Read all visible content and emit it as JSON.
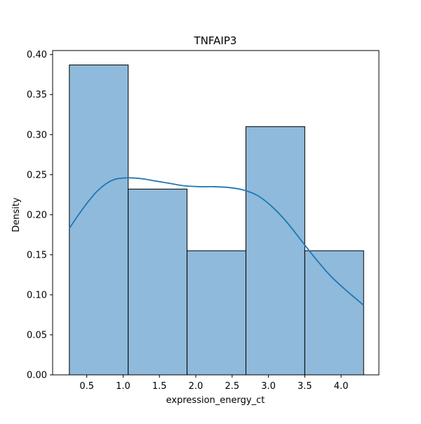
{
  "chart_data": {
    "type": "histogram",
    "title": "TNFAIP3",
    "xlabel": "expression_energy_ct",
    "ylabel": "Density",
    "xlim": [
      0.03,
      4.52
    ],
    "ylim": [
      0.0,
      0.405
    ],
    "xticks": [
      0.5,
      1.0,
      1.5,
      2.0,
      2.5,
      3.0,
      3.5,
      4.0
    ],
    "xtick_labels": [
      "0.5",
      "1.0",
      "1.5",
      "2.0",
      "2.5",
      "3.0",
      "3.5",
      "4.0"
    ],
    "yticks": [
      0.0,
      0.05,
      0.1,
      0.15,
      0.2,
      0.25,
      0.3,
      0.35,
      0.4
    ],
    "ytick_labels": [
      "0.00",
      "0.05",
      "0.10",
      "0.15",
      "0.20",
      "0.25",
      "0.30",
      "0.35",
      "0.40"
    ],
    "grid": false,
    "bins": [
      {
        "x0": 0.26,
        "x1": 1.07,
        "density": 0.387
      },
      {
        "x0": 1.07,
        "x1": 1.88,
        "density": 0.232
      },
      {
        "x0": 1.88,
        "x1": 2.69,
        "density": 0.155
      },
      {
        "x0": 2.69,
        "x1": 3.5,
        "density": 0.31
      },
      {
        "x0": 3.5,
        "x1": 4.31,
        "density": 0.155
      }
    ],
    "kde": {
      "x": [
        0.26,
        0.45,
        0.65,
        0.85,
        1.05,
        1.25,
        1.45,
        1.65,
        1.85,
        2.05,
        2.25,
        2.45,
        2.65,
        2.85,
        3.05,
        3.25,
        3.45,
        3.65,
        3.85,
        4.05,
        4.31
      ],
      "y": [
        0.183,
        0.208,
        0.23,
        0.243,
        0.246,
        0.245,
        0.242,
        0.239,
        0.236,
        0.235,
        0.235,
        0.234,
        0.231,
        0.224,
        0.21,
        0.191,
        0.168,
        0.145,
        0.124,
        0.107,
        0.087
      ]
    },
    "colors": {
      "bar_fill": "#8fbadb",
      "bar_edge": "#000000",
      "kde_line": "#1f77b4"
    }
  }
}
